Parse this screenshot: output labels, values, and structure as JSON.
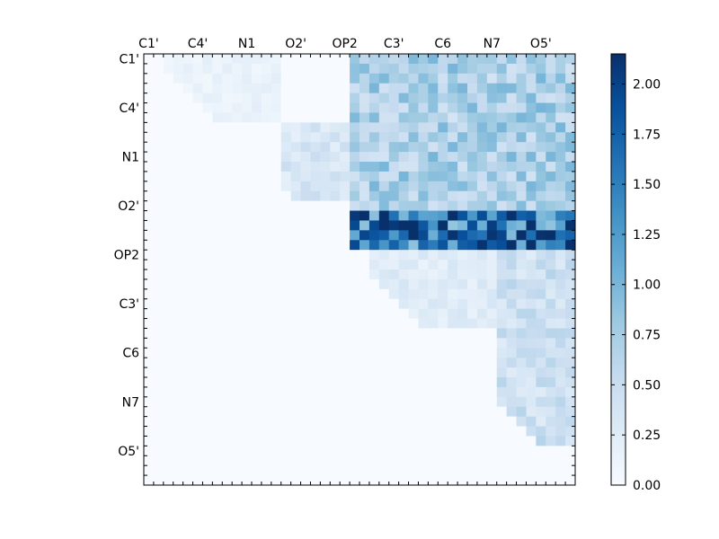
{
  "chart_data": {
    "type": "heatmap",
    "title": "",
    "xlabel": "",
    "ylabel": "",
    "grid_size": [
      44,
      44
    ],
    "tick_labels": [
      "C1'",
      "C4'",
      "N1",
      "O2'",
      "OP2",
      "C3'",
      "C6",
      "N7",
      "O5'"
    ],
    "colorbar": {
      "min": 0.0,
      "max": 2.15,
      "ticks": [
        "0.00",
        "0.25",
        "0.50",
        "0.75",
        "1.00",
        "1.25",
        "1.50",
        "1.75",
        "2.00"
      ],
      "colormap": "Blues",
      "colors": [
        "#f7fbff",
        "#deebf7",
        "#c6dbef",
        "#9ecae1",
        "#6baed6",
        "#4292c6",
        "#2171b5",
        "#08519c",
        "#08306b"
      ]
    },
    "value_description": "upper triangular matrix, lower triangle near zero",
    "blocks": [
      {
        "rows": [
          0,
          7
        ],
        "cols": [
          2,
          14
        ],
        "value": 0.15
      },
      {
        "rows": [
          7,
          15
        ],
        "cols": [
          14,
          21
        ],
        "value": 0.35
      },
      {
        "rows": [
          0,
          16
        ],
        "cols": [
          21,
          44
        ],
        "value": 0.7
      },
      {
        "rows": [
          16,
          20
        ],
        "cols": [
          21,
          44
        ],
        "value": 1.55
      },
      {
        "rows": [
          20,
          28
        ],
        "cols": [
          23,
          36
        ],
        "value": 0.25
      },
      {
        "rows": [
          20,
          40
        ],
        "cols": [
          36,
          44
        ],
        "value": 0.45
      }
    ]
  }
}
